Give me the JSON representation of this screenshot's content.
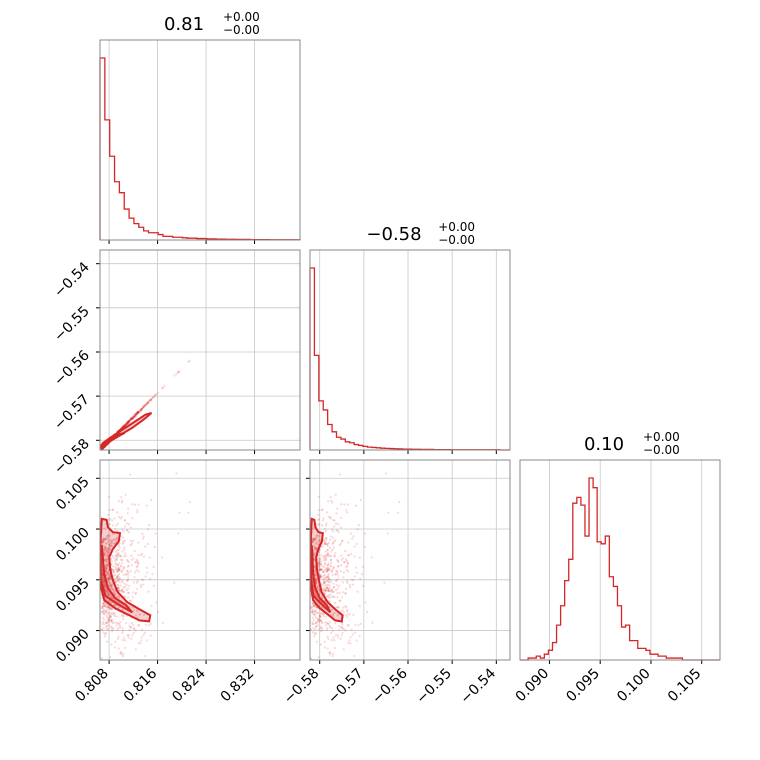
{
  "chart_data": {
    "type": "corner",
    "color": "#d62728",
    "parameters": [
      {
        "title_value": "0.81",
        "title_plus": "+0.00",
        "title_minus": "−0.00",
        "range": [
          0.8065,
          0.8395
        ],
        "ticks": [
          0.808,
          0.816,
          0.824,
          0.832
        ],
        "tick_labels": [
          "0.808",
          "0.816",
          "0.824",
          "0.832"
        ]
      },
      {
        "title_value": "−0.58",
        "title_plus": "+0.00",
        "title_minus": "−0.00",
        "range": [
          -0.5822,
          -0.5369
        ],
        "ticks": [
          -0.58,
          -0.57,
          -0.56,
          -0.55,
          -0.54
        ],
        "tick_labels": [
          "−0.58",
          "−0.57",
          "−0.56",
          "−0.55",
          "−0.54"
        ]
      },
      {
        "title_value": "0.10",
        "title_plus": "+0.00",
        "title_minus": "−0.00",
        "range": [
          0.0871,
          0.1068
        ],
        "ticks": [
          0.09,
          0.095,
          0.1,
          0.105
        ],
        "tick_labels": [
          "0.090",
          "0.095",
          "0.100",
          "0.105"
        ]
      }
    ],
    "histograms": [
      {
        "param": 0,
        "bin_edges": [
          0.8065,
          0.8073,
          0.8081,
          0.8089,
          0.8097,
          0.8105,
          0.8113,
          0.8121,
          0.8129,
          0.8137,
          0.8145,
          0.8153,
          0.8161,
          0.8169,
          0.8177,
          0.8185,
          0.8193,
          0.8201,
          0.8209,
          0.8217,
          0.8225,
          0.8233,
          0.8241,
          0.8249,
          0.8257,
          0.8265,
          0.8273,
          0.8281,
          0.8289,
          0.8297,
          0.8305,
          0.8313,
          0.8321,
          0.8329,
          0.8337,
          0.8345,
          0.8353,
          0.8361,
          0.8369,
          0.8377,
          0.8385,
          0.8395
        ],
        "counts": [
          1.0,
          0.66,
          0.46,
          0.32,
          0.26,
          0.17,
          0.12,
          0.09,
          0.07,
          0.05,
          0.04,
          0.04,
          0.03,
          0.02,
          0.02,
          0.015,
          0.015,
          0.012,
          0.01,
          0.01,
          0.008,
          0.008,
          0.006,
          0.006,
          0.005,
          0.005,
          0.004,
          0.004,
          0.003,
          0.003,
          0.003,
          0.002,
          0.002,
          0.002,
          0.002,
          0.001,
          0.001,
          0.001,
          0.001,
          0.001,
          0.001
        ]
      },
      {
        "param": 1,
        "bin_edges": [
          -0.5822,
          -0.5812,
          -0.5802,
          -0.5792,
          -0.5782,
          -0.5772,
          -0.5762,
          -0.5752,
          -0.5742,
          -0.5732,
          -0.5722,
          -0.5712,
          -0.5702,
          -0.5692,
          -0.5682,
          -0.5672,
          -0.5662,
          -0.5652,
          -0.5642,
          -0.5632,
          -0.5622,
          -0.5612,
          -0.5602,
          -0.5592,
          -0.5582,
          -0.5572,
          -0.5562,
          -0.5552,
          -0.5542,
          -0.5532,
          -0.5522,
          -0.5512,
          -0.5502,
          -0.5492,
          -0.5482,
          -0.5472,
          -0.5462,
          -0.5452,
          -0.5442,
          -0.5432,
          -0.5422,
          -0.5412,
          -0.5402,
          -0.5392,
          -0.5369
        ],
        "counts": [
          1.0,
          0.52,
          0.27,
          0.22,
          0.14,
          0.1,
          0.07,
          0.06,
          0.045,
          0.04,
          0.03,
          0.025,
          0.02,
          0.016,
          0.014,
          0.012,
          0.01,
          0.009,
          0.008,
          0.007,
          0.006,
          0.005,
          0.005,
          0.004,
          0.004,
          0.003,
          0.003,
          0.003,
          0.002,
          0.002,
          0.002,
          0.002,
          0.001,
          0.001,
          0.001,
          0.001,
          0.001,
          0.001,
          0.001,
          0.001,
          0.001,
          0.001,
          0.001,
          0.0
        ]
      },
      {
        "param": 2,
        "bin_edges": [
          0.0871,
          0.0875,
          0.0879,
          0.0883,
          0.0887,
          0.0891,
          0.0895,
          0.0899,
          0.0903,
          0.0907,
          0.0911,
          0.0915,
          0.0919,
          0.0923,
          0.0927,
          0.0931,
          0.0935,
          0.0939,
          0.0943,
          0.0947,
          0.0951,
          0.0955,
          0.0959,
          0.0963,
          0.0967,
          0.0971,
          0.0975,
          0.0979,
          0.0983,
          0.0987,
          0.0991,
          0.0995,
          0.0999,
          0.1003,
          0.1007,
          0.1011,
          0.1015,
          0.1019,
          0.1023,
          0.1027,
          0.1031,
          0.1035,
          0.1039,
          0.1043,
          0.1047,
          0.1051,
          0.1055,
          0.1059,
          0.1063,
          0.1068
        ],
        "counts": [
          0.0,
          0.0,
          0.01,
          0.01,
          0.02,
          0.01,
          0.03,
          0.05,
          0.09,
          0.18,
          0.28,
          0.41,
          0.52,
          0.81,
          0.84,
          0.8,
          0.64,
          0.94,
          0.89,
          0.61,
          0.6,
          0.64,
          0.43,
          0.38,
          0.28,
          0.17,
          0.18,
          0.1,
          0.1,
          0.06,
          0.06,
          0.05,
          0.03,
          0.03,
          0.02,
          0.02,
          0.01,
          0.01,
          0.01,
          0.01,
          0.0,
          0.0,
          0.0,
          0.0,
          0.0,
          0.0,
          0.0,
          0.0,
          0.0
        ]
      }
    ],
    "contours": [
      {
        "x_param": 0,
        "y_param": 1,
        "level_outer": [
          [
            0.8068,
            -0.5818
          ],
          [
            0.8082,
            -0.5802
          ],
          [
            0.8098,
            -0.5788
          ],
          [
            0.8118,
            -0.5772
          ],
          [
            0.8138,
            -0.5752
          ],
          [
            0.815,
            -0.5738
          ],
          [
            0.814,
            -0.5742
          ],
          [
            0.812,
            -0.576
          ],
          [
            0.81,
            -0.5778
          ],
          [
            0.8082,
            -0.5794
          ],
          [
            0.807,
            -0.5806
          ],
          [
            0.8066,
            -0.5814
          ]
        ],
        "level_inner": [
          [
            0.8068,
            -0.5814
          ],
          [
            0.808,
            -0.5803
          ],
          [
            0.8094,
            -0.5792
          ],
          [
            0.8106,
            -0.5783
          ],
          [
            0.8098,
            -0.5786
          ],
          [
            0.8084,
            -0.5797
          ],
          [
            0.8071,
            -0.5808
          ]
        ]
      },
      {
        "x_param": 0,
        "y_param": 2,
        "level_outer": [
          [
            0.8066,
            0.0944
          ],
          [
            0.8072,
            0.093
          ],
          [
            0.809,
            0.0922
          ],
          [
            0.811,
            0.0916
          ],
          [
            0.813,
            0.091
          ],
          [
            0.8146,
            0.0909
          ],
          [
            0.8148,
            0.0915
          ],
          [
            0.813,
            0.0921
          ],
          [
            0.811,
            0.0928
          ],
          [
            0.8094,
            0.0938
          ],
          [
            0.8086,
            0.095
          ],
          [
            0.8082,
            0.096
          ],
          [
            0.808,
            0.0972
          ],
          [
            0.8086,
            0.098
          ],
          [
            0.8096,
            0.0988
          ],
          [
            0.8098,
            0.0996
          ],
          [
            0.8086,
            0.0997
          ],
          [
            0.8078,
            0.1002
          ],
          [
            0.8076,
            0.1009
          ],
          [
            0.8068,
            0.101
          ],
          [
            0.8066,
            0.099
          ]
        ],
        "level_inner": [
          [
            0.8066,
            0.095
          ],
          [
            0.8074,
            0.0934
          ],
          [
            0.8094,
            0.0926
          ],
          [
            0.8118,
            0.0918
          ],
          [
            0.8108,
            0.0925
          ],
          [
            0.809,
            0.0932
          ],
          [
            0.8078,
            0.0942
          ],
          [
            0.8072,
            0.0956
          ],
          [
            0.807,
            0.097
          ],
          [
            0.8068,
            0.0984
          ],
          [
            0.8066,
            0.098
          ]
        ]
      },
      {
        "x_param": 1,
        "y_param": 2,
        "level_outer": [
          [
            -0.582,
            0.0944
          ],
          [
            -0.5815,
            0.093
          ],
          [
            -0.58,
            0.0922
          ],
          [
            -0.5782,
            0.0916
          ],
          [
            -0.5765,
            0.091
          ],
          [
            -0.575,
            0.0909
          ],
          [
            -0.5748,
            0.0915
          ],
          [
            -0.5765,
            0.0921
          ],
          [
            -0.5782,
            0.0928
          ],
          [
            -0.5796,
            0.0938
          ],
          [
            -0.5802,
            0.095
          ],
          [
            -0.5806,
            0.096
          ],
          [
            -0.5808,
            0.0972
          ],
          [
            -0.5803,
            0.098
          ],
          [
            -0.5795,
            0.0988
          ],
          [
            -0.5793,
            0.0996
          ],
          [
            -0.5803,
            0.0997
          ],
          [
            -0.581,
            0.1002
          ],
          [
            -0.5812,
            0.1009
          ],
          [
            -0.5818,
            0.101
          ],
          [
            -0.582,
            0.099
          ]
        ],
        "level_inner": [
          [
            -0.582,
            0.095
          ],
          [
            -0.5814,
            0.0934
          ],
          [
            -0.5796,
            0.0926
          ],
          [
            -0.5776,
            0.0918
          ],
          [
            -0.5784,
            0.0925
          ],
          [
            -0.58,
            0.0932
          ],
          [
            -0.581,
            0.0942
          ],
          [
            -0.5815,
            0.0956
          ],
          [
            -0.5816,
            0.097
          ],
          [
            -0.5818,
            0.0984
          ],
          [
            -0.582,
            0.098
          ]
        ]
      }
    ],
    "grid": true
  }
}
